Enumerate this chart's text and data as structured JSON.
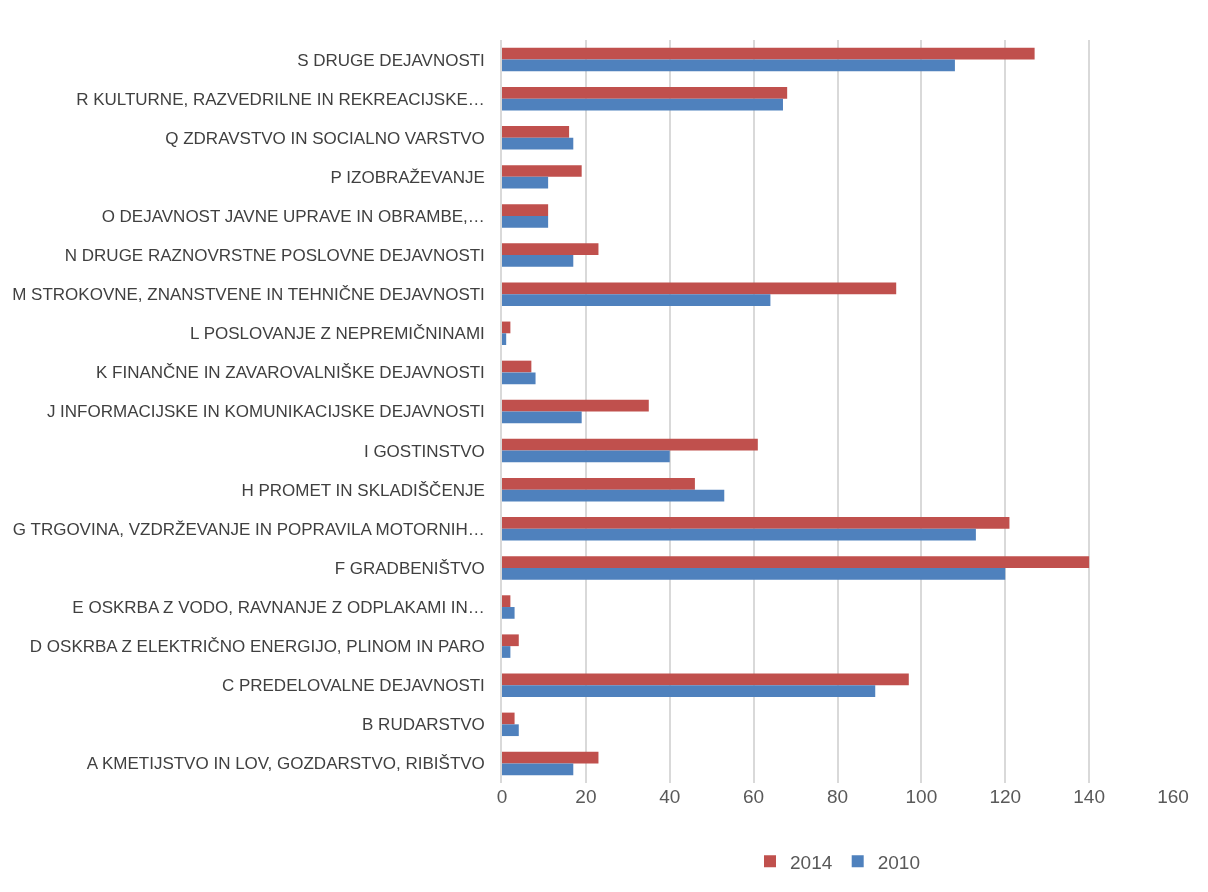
{
  "chart_data": {
    "type": "bar",
    "orientation": "horizontal",
    "categories": [
      "S DRUGE DEJAVNOSTI",
      "R KULTURNE, RAZVEDRILNE IN REKREACIJSKE…",
      "Q ZDRAVSTVO IN SOCIALNO VARSTVO",
      "P IZOBRAŽEVANJE",
      "O DEJAVNOST JAVNE UPRAVE IN OBRAMBE,…",
      "N DRUGE RAZNOVRSTNE POSLOVNE DEJAVNOSTI",
      "M STROKOVNE, ZNANSTVENE IN TEHNIČNE DEJAVNOSTI",
      "L POSLOVANJE Z NEPREMIČNINAMI",
      "K FINANČNE IN ZAVAROVALNIŠKE DEJAVNOSTI",
      "J INFORMACIJSKE IN KOMUNIKACIJSKE DEJAVNOSTI",
      "I GOSTINSTVO",
      "H PROMET IN SKLADIŠČENJE",
      "G TRGOVINA, VZDRŽEVANJE IN POPRAVILA MOTORNIH…",
      "F GRADBENIŠTVO",
      "E OSKRBA Z VODO, RAVNANJE Z ODPLAKAMI IN…",
      "D OSKRBA Z ELEKTRIČNO ENERGIJO, PLINOM IN PARO",
      "C PREDELOVALNE DEJAVNOSTI",
      "B RUDARSTVO",
      "A KMETIJSTVO IN LOV, GOZDARSTVO, RIBIŠTVO"
    ],
    "series": [
      {
        "name": "2014",
        "color": "#c0504d",
        "values": [
          127,
          68,
          16,
          19,
          11,
          23,
          94,
          2,
          7,
          35,
          61,
          46,
          121,
          140,
          2,
          4,
          97,
          3,
          23
        ]
      },
      {
        "name": "2010",
        "color": "#4f81bd",
        "values": [
          108,
          67,
          17,
          11,
          11,
          17,
          64,
          1,
          8,
          19,
          40,
          53,
          113,
          120,
          3,
          2,
          89,
          4,
          17
        ]
      }
    ],
    "xlim": [
      0,
      160
    ],
    "xticks": [
      0,
      20,
      40,
      60,
      80,
      100,
      120,
      140,
      160
    ],
    "grid": "x",
    "legend": "bottom"
  }
}
